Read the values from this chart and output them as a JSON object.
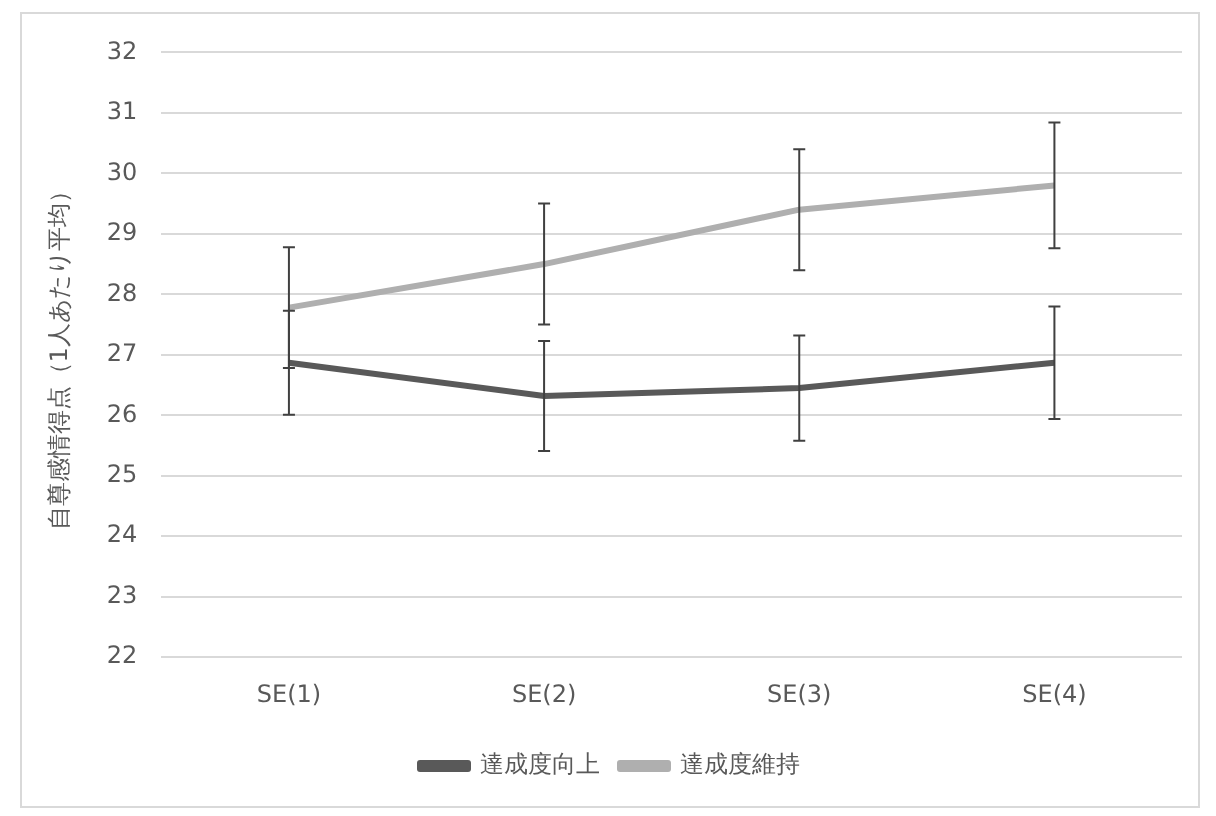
{
  "chart_data": {
    "type": "line",
    "ylabel": "自尊感情得点（1人あたり平均）",
    "categories": [
      "SE(1)",
      "SE(2)",
      "SE(3)",
      "SE(4)"
    ],
    "series": [
      {
        "name": "達成度向上",
        "color": "#595959",
        "values": [
          26.87,
          26.32,
          26.45,
          26.87
        ],
        "errors": [
          0.86,
          0.91,
          0.87,
          0.93
        ]
      },
      {
        "name": "達成度維持",
        "color": "#afafaf",
        "values": [
          27.78,
          28.5,
          29.4,
          29.8
        ],
        "errors": [
          1.0,
          1.0,
          1.0,
          1.04
        ]
      }
    ],
    "ylim": [
      22,
      32
    ],
    "yticks": [
      22,
      23,
      24,
      25,
      26,
      27,
      28,
      29,
      30,
      31,
      32
    ],
    "grid": "y",
    "legend": "bottom",
    "marker": "none",
    "line_style": "solid"
  }
}
